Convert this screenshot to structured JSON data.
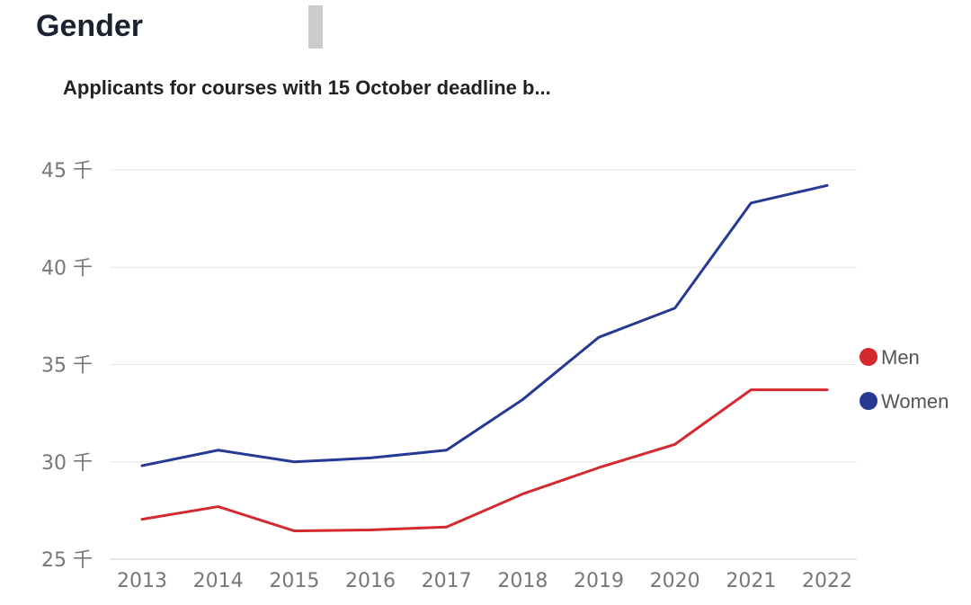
{
  "page": {
    "section_title": "Gender"
  },
  "chart_data": {
    "type": "line",
    "title": "Applicants for courses with 15 October deadline b...",
    "xlabel": "",
    "ylabel": "",
    "categories": [
      "2013",
      "2014",
      "2015",
      "2016",
      "2017",
      "2018",
      "2019",
      "2020",
      "2021",
      "2022"
    ],
    "y_ticks": [
      {
        "value": 25000,
        "label": "25 千"
      },
      {
        "value": 30000,
        "label": "30 千"
      },
      {
        "value": 35000,
        "label": "35 千"
      },
      {
        "value": 40000,
        "label": "40 千"
      },
      {
        "value": 45000,
        "label": "45 千"
      }
    ],
    "ylim": [
      25000,
      45000
    ],
    "grid": true,
    "legend_position": "right",
    "series": [
      {
        "name": "Men",
        "color": "#d42a2f",
        "values": [
          27050,
          27700,
          26450,
          26500,
          26650,
          28350,
          29700,
          30900,
          33700,
          33700
        ]
      },
      {
        "name": "Women",
        "color": "#263a94",
        "values": [
          29800,
          30600,
          30000,
          30200,
          30600,
          33200,
          36400,
          37900,
          43300,
          44200
        ]
      }
    ]
  }
}
